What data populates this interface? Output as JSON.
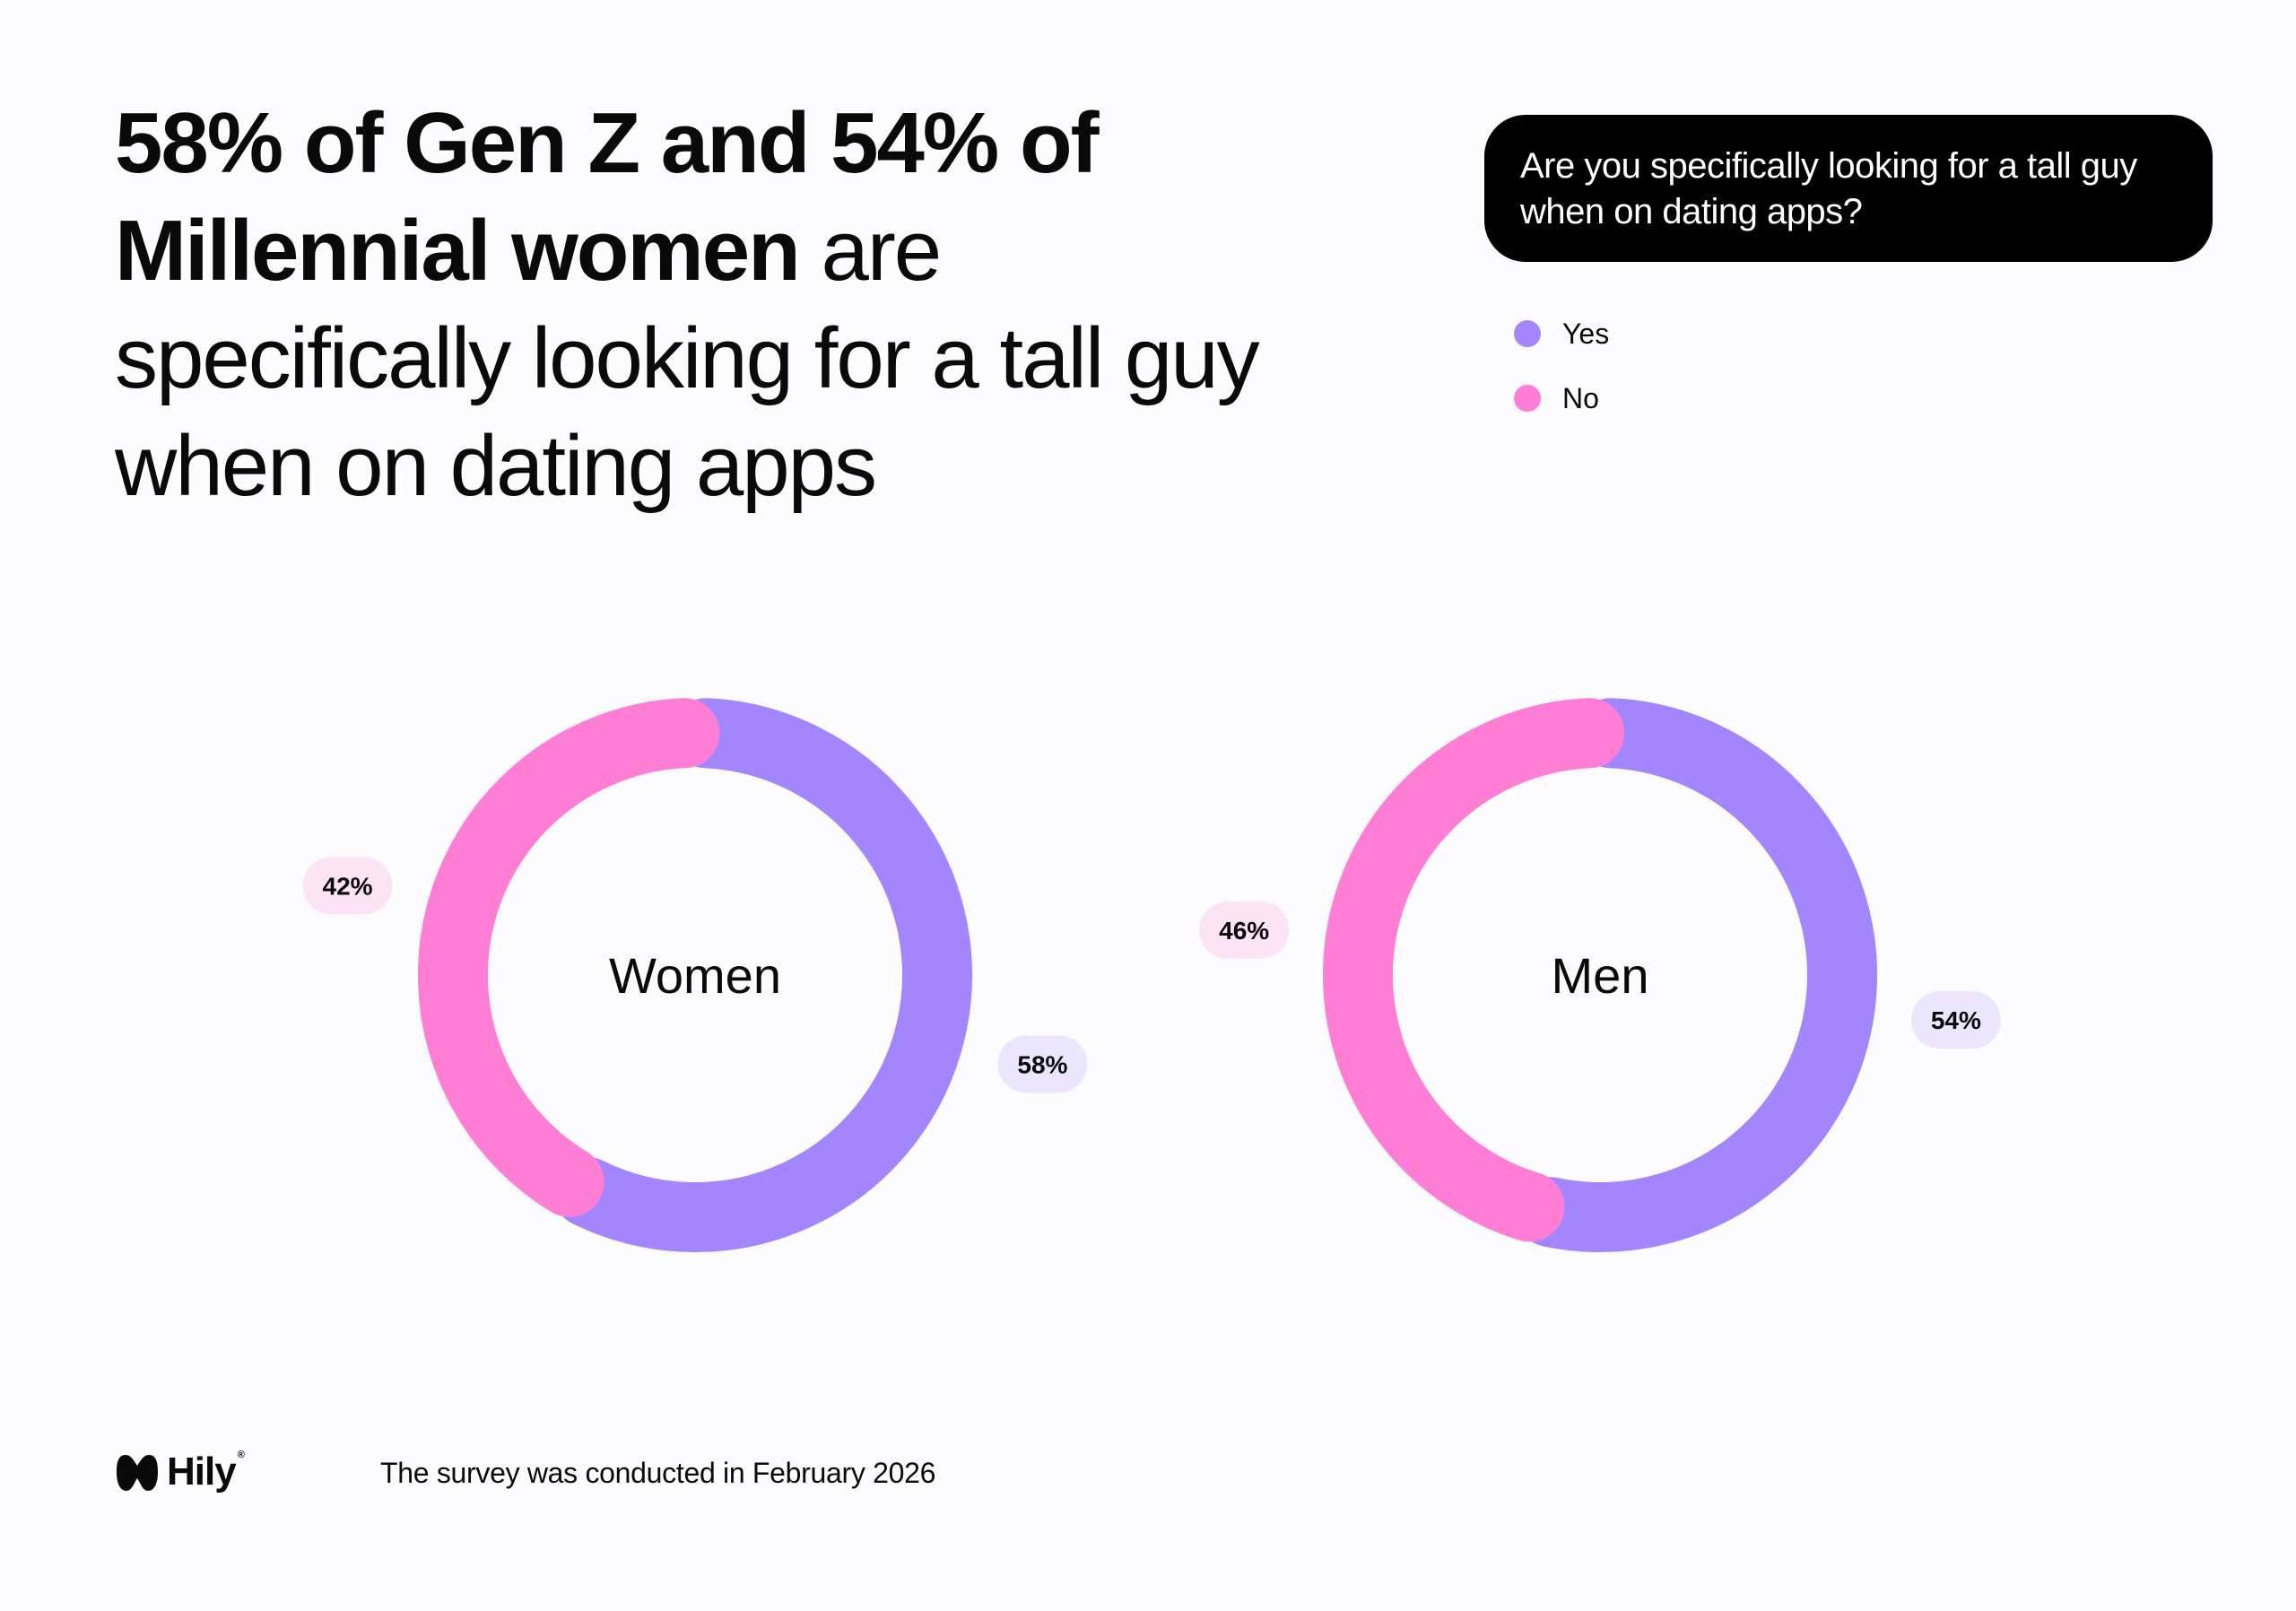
{
  "headline": {
    "bold_line1": "58% of Gen Z and 54% of",
    "bold_line2": "Millennial women",
    "regular_line2": " are",
    "regular_line3": "specifically looking for a tall guy",
    "regular_line4": "when on dating apps"
  },
  "question": "Are you specifically looking for a tall guy when on dating apps?",
  "legend": [
    {
      "label": "Yes",
      "color": "#a386fd"
    },
    {
      "label": "No",
      "color": "#ff7ed5"
    }
  ],
  "chart_data": [
    {
      "type": "pie",
      "title": "Women",
      "categories": [
        "Yes",
        "No"
      ],
      "values": [
        58,
        42
      ],
      "value_labels": [
        "58%",
        "42%"
      ]
    },
    {
      "type": "pie",
      "title": "Men",
      "categories": [
        "Yes",
        "No"
      ],
      "values": [
        54,
        46
      ],
      "value_labels": [
        "54%",
        "46%"
      ]
    }
  ],
  "label_colors": {
    "Yes": "#ebe6fd",
    "No": "#fde4f5"
  },
  "footer": {
    "brand": "Hily",
    "brand_mark": "®",
    "note": "The survey was conducted in February 2026"
  }
}
